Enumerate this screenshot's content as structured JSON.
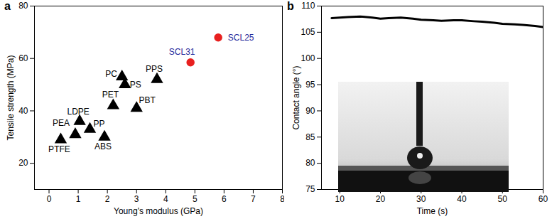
{
  "chart_data": [
    {
      "type": "scatter",
      "title": "a",
      "x_label": "Young's modulus (GPa)",
      "y_label": "Tensile strength (MPa)",
      "xlim": [
        -0.5,
        8
      ],
      "xticks": [
        0,
        1,
        2,
        3,
        4,
        5,
        6,
        7,
        8
      ],
      "ylim": [
        10,
        80
      ],
      "yticks": [
        20,
        40,
        60,
        80
      ],
      "series": [
        {
          "color": "#000000",
          "marker": "triangle",
          "labels": [
            "PTFE",
            "PEA",
            "LDPE",
            "PP",
            "ABS",
            "PET",
            "PC",
            "PS",
            "PBT",
            "PPS"
          ],
          "x": [
            0.4,
            0.9,
            1.05,
            1.4,
            1.9,
            2.2,
            2.5,
            2.6,
            3.0,
            3.7
          ],
          "values": [
            29,
            31,
            36,
            33,
            30,
            42,
            53,
            50,
            41,
            52
          ]
        },
        {
          "color": "#e8201f",
          "marker": "circle",
          "labels": [
            "SCL31",
            "SCL25"
          ],
          "x": [
            4.85,
            5.8
          ],
          "values": [
            58.5,
            68
          ]
        }
      ]
    },
    {
      "type": "line",
      "title": "b",
      "x_label": "Time (s)",
      "y_label": "Contact angle (°)",
      "xlim": [
        5.5,
        60
      ],
      "xticks": [
        10,
        20,
        30,
        40,
        50,
        60
      ],
      "ylim": [
        75,
        110
      ],
      "yticks": [
        75,
        80,
        85,
        90,
        95,
        100,
        105,
        110
      ],
      "x": [
        8,
        10,
        12,
        15,
        18,
        20,
        22,
        25,
        28,
        30,
        33,
        35,
        38,
        40,
        43,
        45,
        48,
        50,
        53,
        55,
        58,
        60
      ],
      "values": [
        107.7,
        107.8,
        107.9,
        108.0,
        107.8,
        107.6,
        107.7,
        107.8,
        107.6,
        107.4,
        107.3,
        107.2,
        107.3,
        107.3,
        107.1,
        107.0,
        106.8,
        106.6,
        106.5,
        106.4,
        106.2,
        106.0
      ],
      "color": "#000000"
    }
  ]
}
